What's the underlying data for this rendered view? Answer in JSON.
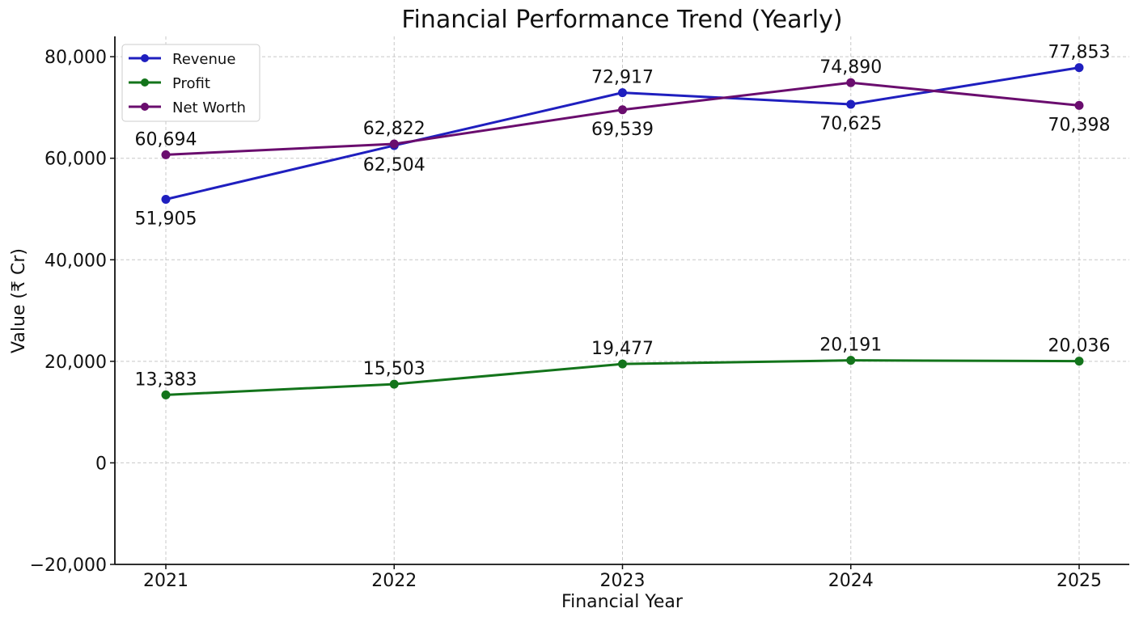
{
  "chart_data": {
    "type": "line",
    "title": "Financial Performance Trend (Yearly)",
    "xlabel": "Financial Year",
    "ylabel": "Value (₹ Cr)",
    "categories": [
      "2021",
      "2022",
      "2023",
      "2024",
      "2025"
    ],
    "ylim": [
      -20000,
      84000
    ],
    "yticks": [
      -20000,
      0,
      20000,
      40000,
      60000,
      80000
    ],
    "ytick_labels": [
      "−20,000",
      "0",
      "20,000",
      "40,000",
      "60,000",
      "80,000"
    ],
    "grid": true,
    "legend_position": "top-left",
    "series": [
      {
        "name": "Revenue",
        "color": "#1f1fbf",
        "values": [
          51905,
          62504,
          72917,
          70625,
          77853
        ],
        "labels": [
          "51,905",
          "62,504",
          "72,917",
          "70,625",
          "77,853"
        ],
        "label_positions": [
          "below",
          "below",
          "above",
          "below",
          "above"
        ]
      },
      {
        "name": "Profit",
        "color": "#13741b",
        "values": [
          13383,
          15503,
          19477,
          20191,
          20036
        ],
        "labels": [
          "13,383",
          "15,503",
          "19,477",
          "20,191",
          "20,036"
        ],
        "label_positions": [
          "above",
          "above",
          "above",
          "above",
          "above"
        ]
      },
      {
        "name": "Net Worth",
        "color": "#6a0d6e",
        "values": [
          60694,
          62822,
          69539,
          74890,
          70398
        ],
        "labels": [
          "60,694",
          "62,822",
          "69,539",
          "74,890",
          "70,398"
        ],
        "label_positions": [
          "above",
          "above",
          "below",
          "above",
          "below"
        ]
      }
    ]
  }
}
